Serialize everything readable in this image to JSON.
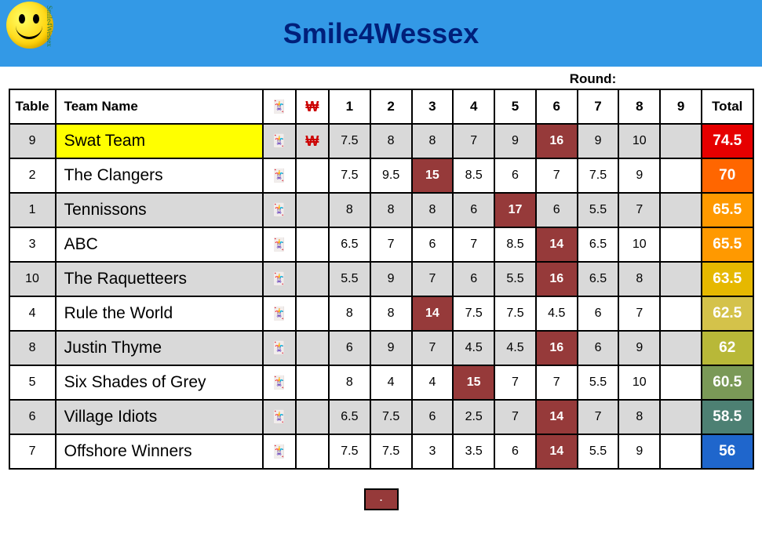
{
  "header": {
    "title": "Smile4Wessex",
    "logo_text": "Smile4Wessex",
    "bar_color": "#3399e6",
    "title_color": "#001f7a"
  },
  "round_label": "Round:",
  "columns": {
    "table": "Table",
    "team": "Team Name",
    "total": "Total",
    "rounds": [
      "1",
      "2",
      "3",
      "4",
      "5",
      "6",
      "7",
      "8",
      "9"
    ]
  },
  "joker_glyph": "🃏",
  "won_glyph": "₩",
  "joker_cell_bg": "#963a3a",
  "stripe_bg": "#d9d9d9",
  "highlight_bg": "#ffff00",
  "legend_text": ".",
  "rows": [
    {
      "table": "9",
      "team": "Swat Team",
      "won": true,
      "highlight": true,
      "scores": [
        "7.5",
        "8",
        "8",
        "7",
        "9",
        "16",
        "9",
        "10",
        ""
      ],
      "jokers": [
        5
      ],
      "total": "74.5",
      "total_bg": "#e60000"
    },
    {
      "table": "2",
      "team": "The Clangers",
      "won": false,
      "scores": [
        "7.5",
        "9.5",
        "15",
        "8.5",
        "6",
        "7",
        "7.5",
        "9",
        ""
      ],
      "jokers": [
        2
      ],
      "total": "70",
      "total_bg": "#ff6600"
    },
    {
      "table": "1",
      "team": "Tennissons",
      "won": false,
      "scores": [
        "8",
        "8",
        "8",
        "6",
        "17",
        "6",
        "5.5",
        "7",
        ""
      ],
      "jokers": [
        4
      ],
      "total": "65.5",
      "total_bg": "#ff9900"
    },
    {
      "table": "3",
      "team": "ABC",
      "won": false,
      "scores": [
        "6.5",
        "7",
        "6",
        "7",
        "8.5",
        "14",
        "6.5",
        "10",
        ""
      ],
      "jokers": [
        5
      ],
      "total": "65.5",
      "total_bg": "#ff9900"
    },
    {
      "table": "10",
      "team": "The Raquetteers",
      "won": false,
      "scores": [
        "5.5",
        "9",
        "7",
        "6",
        "5.5",
        "16",
        "6.5",
        "8",
        ""
      ],
      "jokers": [
        5
      ],
      "total": "63.5",
      "total_bg": "#e6b800"
    },
    {
      "table": "4",
      "team": "Rule the World",
      "won": false,
      "scores": [
        "8",
        "8",
        "14",
        "7.5",
        "7.5",
        "4.5",
        "6",
        "7",
        ""
      ],
      "jokers": [
        2
      ],
      "total": "62.5",
      "total_bg": "#d4c24a"
    },
    {
      "table": "8",
      "team": "Justin Thyme",
      "won": false,
      "scores": [
        "6",
        "9",
        "7",
        "4.5",
        "4.5",
        "16",
        "6",
        "9",
        ""
      ],
      "jokers": [
        5
      ],
      "total": "62",
      "total_bg": "#b8b838"
    },
    {
      "table": "5",
      "team": "Six Shades of Grey",
      "won": false,
      "scores": [
        "8",
        "4",
        "4",
        "15",
        "7",
        "7",
        "5.5",
        "10",
        ""
      ],
      "jokers": [
        3
      ],
      "total": "60.5",
      "total_bg": "#7a9957"
    },
    {
      "table": "6",
      "team": "Village Idiots",
      "won": false,
      "scores": [
        "6.5",
        "7.5",
        "6",
        "2.5",
        "7",
        "14",
        "7",
        "8",
        ""
      ],
      "jokers": [
        5
      ],
      "total": "58.5",
      "total_bg": "#4d8073"
    },
    {
      "table": "7",
      "team": "Offshore Winners",
      "won": false,
      "scores": [
        "7.5",
        "7.5",
        "3",
        "3.5",
        "6",
        "14",
        "5.5",
        "9",
        ""
      ],
      "jokers": [
        5
      ],
      "total": "56",
      "total_bg": "#1f66cc"
    }
  ]
}
